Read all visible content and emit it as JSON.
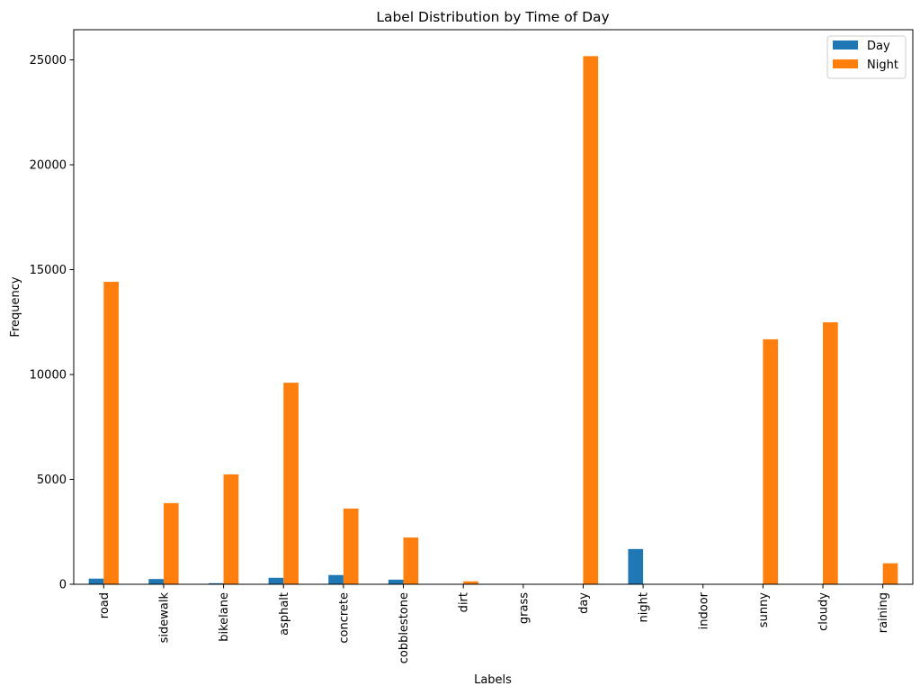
{
  "chart_data": {
    "type": "bar",
    "title": "Label Distribution by Time of Day",
    "xlabel": "Labels",
    "ylabel": "Frequency",
    "categories": [
      "road",
      "sidewalk",
      "bikelane",
      "asphalt",
      "concrete",
      "cobblestone",
      "dirt",
      "grass",
      "day",
      "night",
      "indoor",
      "sunny",
      "cloudy",
      "raining"
    ],
    "series": [
      {
        "name": "Day",
        "color": "#1f77b4",
        "values": [
          270,
          250,
          50,
          310,
          440,
          220,
          10,
          0,
          0,
          1680,
          0,
          0,
          0,
          0
        ]
      },
      {
        "name": "Night",
        "color": "#ff7f0e",
        "values": [
          14420,
          3870,
          5240,
          9610,
          3610,
          2230,
          140,
          0,
          25180,
          0,
          0,
          11680,
          12490,
          1000
        ]
      }
    ],
    "ylim": [
      0,
      26440
    ],
    "yticks": [
      0,
      5000,
      10000,
      15000,
      20000,
      25000
    ],
    "grid": false,
    "legend_position": "top-right"
  }
}
